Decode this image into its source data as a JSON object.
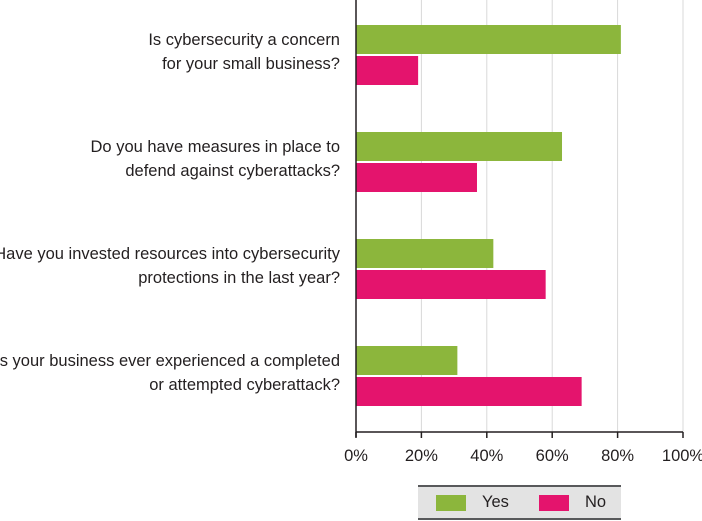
{
  "chart_data": {
    "type": "bar",
    "orientation": "horizontal",
    "categories": [
      [
        "Is cybersecurity a concern",
        "for your small business?"
      ],
      [
        "Do you have measures in place to",
        "defend against cyberattacks?"
      ],
      [
        "Have you invested resources into cybersecurity",
        "protections in the last year?"
      ],
      [
        "Has your business ever experienced a completed",
        "or attempted cyberattack?"
      ]
    ],
    "series": [
      {
        "name": "Yes",
        "color": "#8cb63c",
        "values": [
          81,
          63,
          42,
          31
        ]
      },
      {
        "name": "No",
        "color": "#e4146d",
        "values": [
          19,
          37,
          58,
          69
        ]
      }
    ],
    "xlim": [
      0,
      100
    ],
    "xticks": [
      0,
      20,
      40,
      60,
      80,
      100
    ],
    "tick_labels": [
      "0%",
      "20%",
      "40%",
      "60%",
      "80%",
      "100%"
    ],
    "grid": true,
    "legend_position": "bottom-right"
  },
  "legend": {
    "yes_label": "Yes",
    "no_label": "No",
    "yes_color": "#8cb63c",
    "no_color": "#e4146d"
  }
}
